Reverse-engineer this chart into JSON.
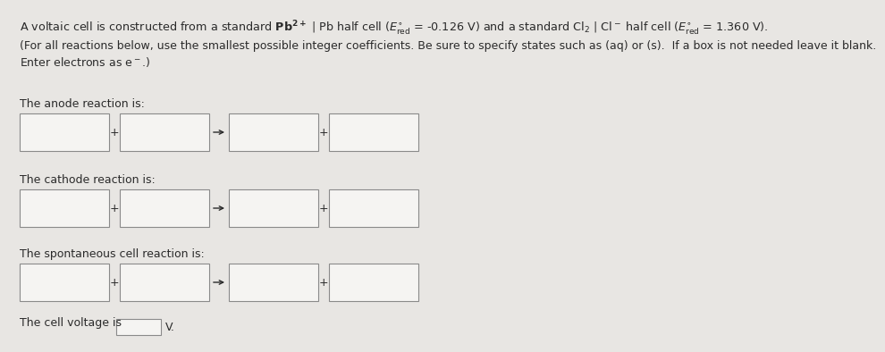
{
  "background_color": "#e8e6e3",
  "title_line": "A voltaic cell is constructed from a standard $\\mathbf{Pb^{2+}}$ | Pb half cell ($E^{\\circ}_{\\mathrm{red}}$ = -0.126 V) and a standard Cl$_2$ | Cl$^-$ half cell ($E^{\\circ}_{\\mathrm{red}}$ = 1.360 V).",
  "instructions_line1": "(For all reactions below, use the smallest possible integer coefficients. Be sure to specify states such as (aq) or (s).  If a box is not needed leave it blank.",
  "instructions_line2": "Enter electrons as e$^-$.)",
  "label_anode": "The anode reaction is:",
  "label_cathode": "The cathode reaction is:",
  "label_spontaneous": "The spontaneous cell reaction is:",
  "label_voltage": "The cell voltage is",
  "voltage_unit": "V.",
  "box_facecolor": "#f5f4f2",
  "box_edgecolor": "#8a8a8a",
  "text_color": "#2a2a2a",
  "fontsize_title": 9.2,
  "fontsize_body": 9.0
}
